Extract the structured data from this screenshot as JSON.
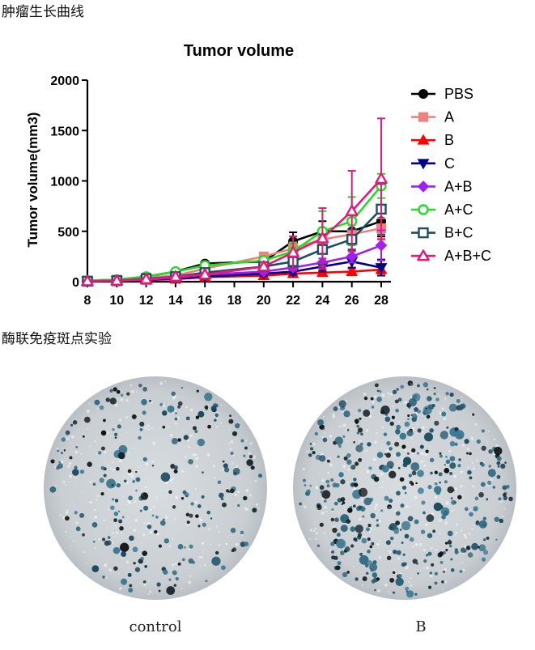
{
  "headings": {
    "growth": "肿瘤生长曲线",
    "elispot": "酶联免疫斑点实验"
  },
  "chart_data": {
    "type": "line",
    "title": "Tumor volume",
    "xlabel": "",
    "ylabel": "Tumor volume(mm3)",
    "xlim": [
      8,
      28
    ],
    "ylim": [
      0,
      2000
    ],
    "x_ticks": [
      "8",
      "10",
      "12",
      "14",
      "16",
      "18",
      "20",
      "22",
      "24",
      "26",
      "28"
    ],
    "y_ticks": [
      "0",
      "500",
      "1000",
      "1500",
      "2000"
    ],
    "legend_position": "right",
    "series": [
      {
        "name": "PBS",
        "color": "#000000",
        "marker": "circle-filled",
        "x": [
          8,
          10,
          12,
          14,
          16,
          20,
          22,
          24,
          26,
          28
        ],
        "y": [
          10,
          20,
          50,
          100,
          180,
          200,
          400,
          500,
          500,
          600
        ],
        "err": [
          5,
          5,
          10,
          20,
          20,
          50,
          90,
          100,
          100,
          150
        ]
      },
      {
        "name": "A",
        "color": "#f08080",
        "marker": "square-filled",
        "x": [
          8,
          10,
          12,
          14,
          16,
          20,
          22,
          24,
          26,
          28
        ],
        "y": [
          10,
          20,
          40,
          60,
          130,
          250,
          330,
          420,
          470,
          530
        ],
        "err": [
          5,
          5,
          10,
          15,
          20,
          40,
          60,
          80,
          90,
          100
        ]
      },
      {
        "name": "B",
        "color": "#ff0000",
        "marker": "triangle-up-filled",
        "x": [
          8,
          10,
          12,
          14,
          16,
          20,
          22,
          24,
          26,
          28
        ],
        "y": [
          5,
          10,
          15,
          25,
          45,
          60,
          80,
          90,
          100,
          120
        ],
        "err": [
          3,
          3,
          5,
          5,
          10,
          15,
          20,
          25,
          30,
          40
        ]
      },
      {
        "name": "C",
        "color": "#00008b",
        "marker": "triangle-down-filled",
        "x": [
          8,
          10,
          12,
          14,
          16,
          20,
          22,
          24,
          26,
          28
        ],
        "y": [
          5,
          10,
          20,
          30,
          50,
          80,
          100,
          150,
          200,
          140
        ],
        "err": [
          3,
          3,
          5,
          10,
          10,
          20,
          30,
          50,
          60,
          80
        ]
      },
      {
        "name": "A+B",
        "color": "#a020f0",
        "marker": "diamond-filled",
        "x": [
          8,
          10,
          12,
          14,
          16,
          20,
          22,
          24,
          26,
          28
        ],
        "y": [
          5,
          10,
          20,
          40,
          70,
          100,
          140,
          190,
          250,
          360
        ],
        "err": [
          3,
          3,
          5,
          10,
          15,
          20,
          30,
          40,
          60,
          150
        ]
      },
      {
        "name": "A+C",
        "color": "#22dd22",
        "marker": "circle-open",
        "x": [
          8,
          10,
          12,
          14,
          16,
          20,
          22,
          24,
          26,
          28
        ],
        "y": [
          10,
          20,
          50,
          100,
          160,
          210,
          300,
          500,
          600,
          950
        ],
        "err": [
          5,
          5,
          10,
          20,
          30,
          40,
          80,
          200,
          240,
          120
        ]
      },
      {
        "name": "B+C",
        "color": "#1f4e5f",
        "marker": "square-open",
        "x": [
          8,
          10,
          12,
          14,
          16,
          20,
          22,
          24,
          26,
          28
        ],
        "y": [
          5,
          10,
          30,
          50,
          90,
          150,
          200,
          320,
          420,
          720
        ],
        "err": [
          3,
          3,
          5,
          10,
          15,
          30,
          50,
          150,
          100,
          250
        ]
      },
      {
        "name": "A+B+C",
        "color": "#e8177a",
        "marker": "triangle-up-open",
        "x": [
          8,
          10,
          12,
          14,
          16,
          20,
          22,
          24,
          26,
          28
        ],
        "y": [
          5,
          10,
          25,
          50,
          70,
          150,
          290,
          430,
          700,
          1020
        ],
        "err": [
          3,
          3,
          5,
          10,
          15,
          40,
          160,
          300,
          400,
          600
        ]
      }
    ]
  },
  "elispot": {
    "wells": [
      {
        "caption": "control",
        "spot_density": "moderate"
      },
      {
        "caption": "B",
        "spot_density": "high"
      }
    ]
  }
}
